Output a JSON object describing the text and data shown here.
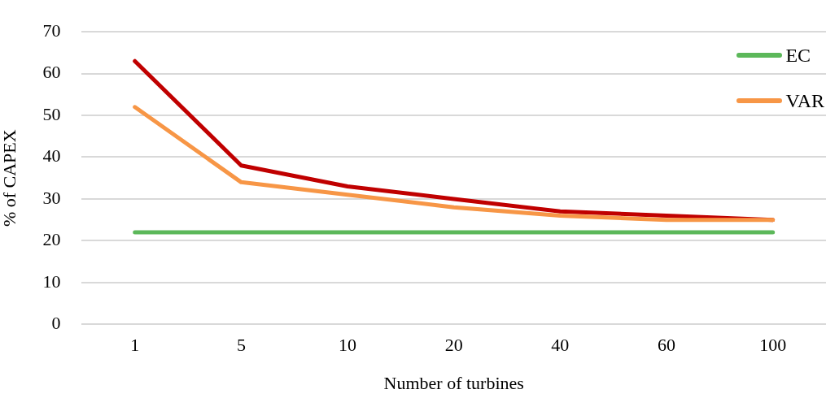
{
  "chart_data": {
    "type": "line",
    "xlabel": "Number of turbines",
    "ylabel": "% of CAPEX",
    "categories": [
      "1",
      "5",
      "10",
      "20",
      "40",
      "60",
      "100"
    ],
    "series": [
      {
        "name": "EC",
        "color": "#5cb85a",
        "values": [
          22,
          22,
          22,
          22,
          22,
          22,
          22
        ]
      },
      {
        "name": "VAR",
        "color": "#f79646",
        "values": [
          52,
          34,
          31,
          28,
          26,
          25,
          25
        ]
      },
      {
        "color": "#c00000",
        "values": [
          63,
          38,
          33,
          30,
          27,
          26,
          25
        ]
      }
    ],
    "ylim": [
      0,
      70
    ],
    "yticks": [
      0,
      10,
      20,
      30,
      40,
      50,
      60,
      70
    ],
    "grid": "y",
    "legend": "top right",
    "marker": "none",
    "line_style": "solid"
  }
}
